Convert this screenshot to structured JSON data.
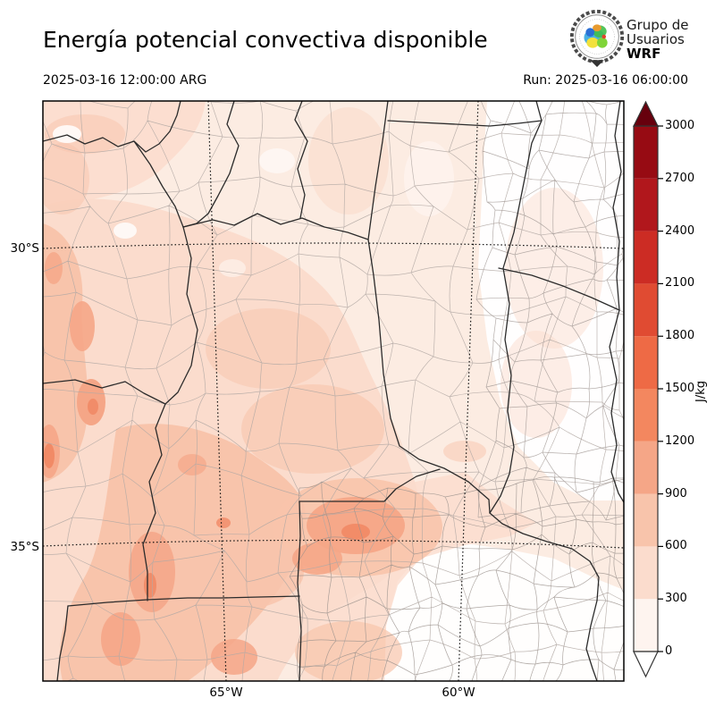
{
  "header": {
    "title": "Energía potencial convectiva disponible",
    "valid_time": "2025-03-16 12:00:00 ARG",
    "run_label": "Run: 2025-03-16 06:00:00",
    "logo": {
      "line1": "Grupo de",
      "line2": "Usuarios",
      "line3": "WRF"
    }
  },
  "map": {
    "lat_ticks": [
      {
        "label": "30°S"
      },
      {
        "label": "35°S"
      }
    ],
    "lon_ticks": [
      {
        "label": "65°W"
      },
      {
        "label": "60°W"
      }
    ]
  },
  "colorbar": {
    "unit": "J/kg",
    "ticks": [
      "0",
      "300",
      "600",
      "900",
      "1200",
      "1500",
      "1800",
      "2100",
      "2400",
      "2700",
      "3000"
    ],
    "band_colors": [
      "#fef4ef",
      "#fbdccd",
      "#f8c4ab",
      "#f5a687",
      "#f3875f",
      "#ee6a45",
      "#e04b32",
      "#cc2c24",
      "#b1171c",
      "#970b13"
    ],
    "over_color": "#67000d",
    "under_color": "#ffffff",
    "field_colors": {
      "base": "#fcece2",
      "band1": "#fbdccd",
      "band2": "#f8c4ab",
      "band3": "#f5a687",
      "band4": "#f18a66",
      "white": "#ffffff"
    }
  }
}
